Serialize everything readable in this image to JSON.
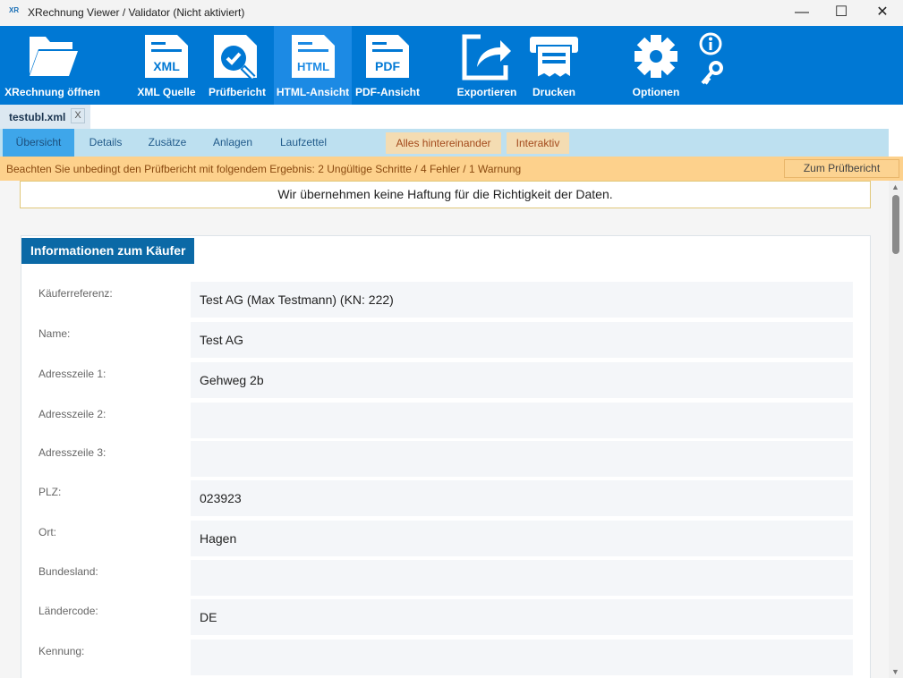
{
  "window": {
    "title": "XRechnung Viewer / Validator (Nicht aktiviert)",
    "app_icon": "XR",
    "minimize": "—",
    "maximize": "☐",
    "close": "✕"
  },
  "toolbar": {
    "items": [
      {
        "label": "XRechnung öffnen",
        "icon": "folder-icon"
      },
      {
        "label": "XML Quelle",
        "icon": "xml-file-icon",
        "tag": "XML"
      },
      {
        "label": "Prüfbericht",
        "icon": "magnifier-check-icon"
      },
      {
        "label": "HTML-Ansicht",
        "icon": "html-file-icon",
        "tag": "HTML",
        "active": true
      },
      {
        "label": "PDF-Ansicht",
        "icon": "pdf-file-icon",
        "tag": "PDF"
      },
      {
        "label": "Exportieren",
        "icon": "export-icon"
      },
      {
        "label": "Drucken",
        "icon": "printer-icon"
      },
      {
        "label": "Optionen",
        "icon": "gear-icon"
      }
    ],
    "info_icon": "info-icon",
    "key_icon": "key-icon"
  },
  "file_tab": {
    "name": "testubl.xml",
    "close": "X"
  },
  "nav": {
    "items": [
      "Übersicht",
      "Details",
      "Zusätze",
      "Anlagen",
      "Laufzettel"
    ],
    "alt": [
      "Alles hintereinander",
      "Interaktiv"
    ]
  },
  "warning": {
    "message": "Beachten Sie unbedingt den Prüfbericht mit folgendem Ergebnis:   2 Ungültige Schritte / 4 Fehler / 1 Warnung",
    "button": "Zum Prüfbericht"
  },
  "notice": "Wir übernehmen keine Haftung für die Richtigkeit der Daten.",
  "section": {
    "title": "Informationen zum Käufer",
    "rows": [
      {
        "label": "Käuferreferenz:",
        "value": "Test AG (Max Testmann) (KN: 222)"
      },
      {
        "label": "Name:",
        "value": "Test AG"
      },
      {
        "label": "Adresszeile 1:",
        "value": "Gehweg 2b"
      },
      {
        "label": "Adresszeile 2:",
        "value": ""
      },
      {
        "label": "Adresszeile 3:",
        "value": ""
      },
      {
        "label": "PLZ:",
        "value": "023923"
      },
      {
        "label": "Ort:",
        "value": "Hagen"
      },
      {
        "label": "Bundesland:",
        "value": ""
      },
      {
        "label": "Ländercode:",
        "value": "DE"
      },
      {
        "label": "Kennung:",
        "value": ""
      }
    ]
  }
}
